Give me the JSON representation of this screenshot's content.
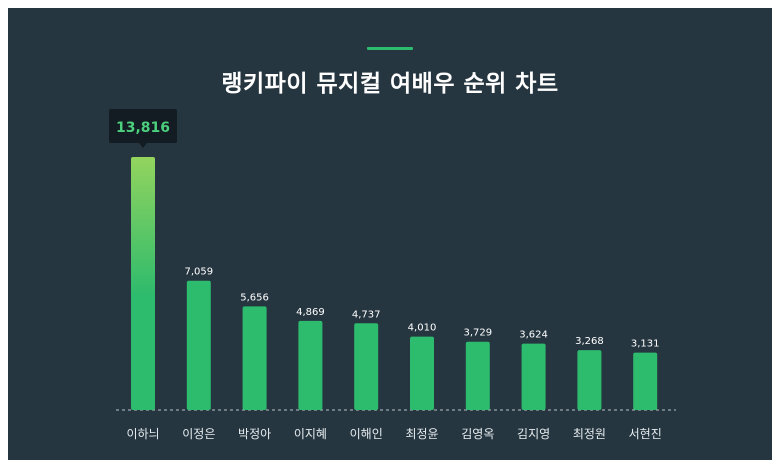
{
  "title": "랭키파이 뮤지컬 여배우 순위 차트",
  "colors": {
    "background": "#263640",
    "accent": "#2dbb6d",
    "bar": "#2dbb6d",
    "bar_top_gradient": "#93d45e",
    "highlight_label": "#4cd07d",
    "tooltip_bg": "#121c22"
  },
  "chart_data": {
    "type": "bar",
    "title": "랭키파이 뮤지컬 여배우 순위 차트",
    "categories": [
      "이하늬",
      "이정은",
      "박정아",
      "이지혜",
      "이해인",
      "최정윤",
      "김영옥",
      "김지영",
      "최정원",
      "서현진"
    ],
    "values": [
      13816,
      7059,
      5656,
      4869,
      4737,
      4010,
      3729,
      3624,
      3268,
      3131
    ],
    "value_labels": [
      "13,816",
      "7,059",
      "5,656",
      "4,869",
      "4,737",
      "4,010",
      "3,729",
      "3,624",
      "3,268",
      "3,131"
    ],
    "highlight_index": 0,
    "xlabel": "",
    "ylabel": "",
    "ylim": [
      0,
      13816
    ],
    "grid": false,
    "legend": "none"
  }
}
